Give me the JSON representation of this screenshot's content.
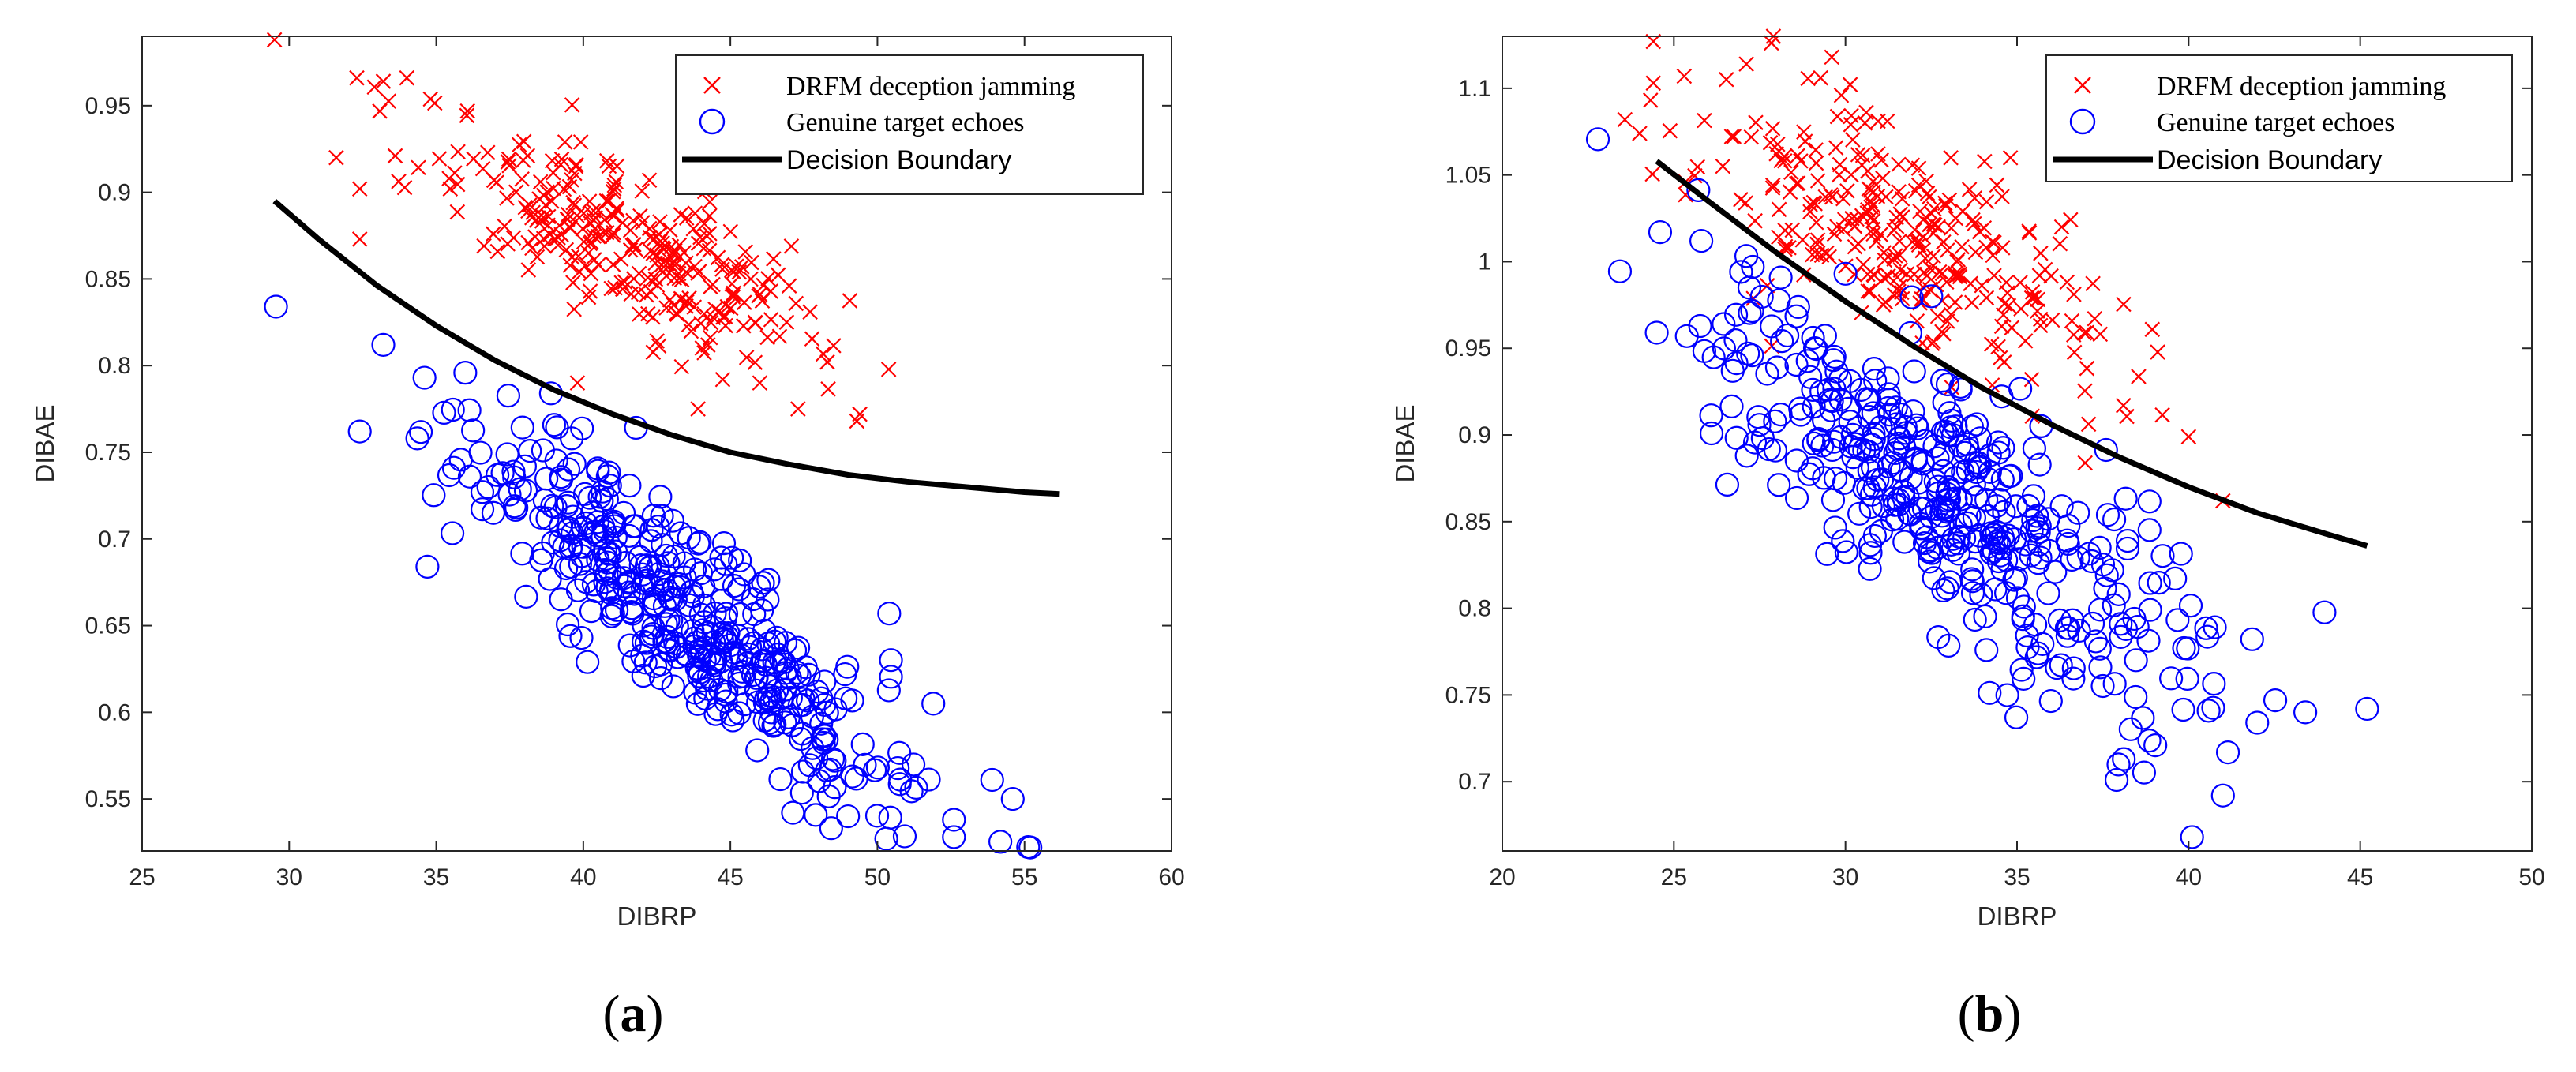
{
  "chart_data": [
    {
      "type": "scatter",
      "panel_label": "(a)",
      "panel_letter": "a",
      "xlabel": "DIBRP",
      "ylabel": "DIBAE",
      "xlim": [
        25,
        60
      ],
      "ylim": [
        0.52,
        0.99
      ],
      "xticks": [
        "25",
        "30",
        "35",
        "40",
        "45",
        "50",
        "55",
        "60"
      ],
      "yticks": [
        "0.55",
        "0.6",
        "0.65",
        "0.7",
        "0.75",
        "0.8",
        "0.85",
        "0.9",
        "0.95"
      ],
      "legend": {
        "position": "top-right",
        "entries": [
          "DRFM deception jamming",
          "Genuine target echoes",
          "Decision Boundary"
        ]
      },
      "series": [
        {
          "name": "DRFM deception jamming",
          "marker": "x",
          "color": "#ff0000",
          "cluster": {
            "count": 300,
            "x_mean": 41.5,
            "x_sd": 3.4,
            "y_center": 0.87,
            "y_slope": -0.0075,
            "y_sd": 0.022
          },
          "points": [
            [
              29.5,
              0.988
            ],
            [
              32.3,
              0.966
            ],
            [
              33.2,
              0.964
            ],
            [
              34.0,
              0.966
            ],
            [
              31.6,
              0.92
            ],
            [
              32.4,
              0.902
            ],
            [
              32.4,
              0.873
            ],
            [
              39.8,
              0.79
            ],
            [
              43.9,
              0.775
            ],
            [
              47.3,
              0.775
            ],
            [
              49.3,
              0.768
            ],
            [
              49.4,
              0.772
            ],
            [
              47.0,
              0.846
            ],
            [
              45.3,
              0.854
            ],
            [
              46.0,
              0.79
            ]
          ]
        },
        {
          "name": "Genuine target echoes",
          "marker": "o",
          "color": "#0000ff",
          "cluster": {
            "count": 420,
            "x_mean": 43.5,
            "x_sd": 3.8,
            "y_center": 0.655,
            "y_slope": -0.0125,
            "y_sd": 0.026
          },
          "points": [
            [
              33.2,
              0.812
            ],
            [
              32.4,
              0.762
            ],
            [
              34.6,
              0.793
            ],
            [
              34.7,
              0.684
            ],
            [
              38.9,
              0.784
            ],
            [
              53.9,
              0.561
            ],
            [
              54.6,
              0.55
            ],
            [
              55.2,
              0.522
            ],
            [
              50.4,
              0.657
            ],
            [
              52.6,
              0.538
            ],
            [
              52.6,
              0.528
            ],
            [
              50.3,
              0.527
            ],
            [
              51.9,
              0.605
            ],
            [
              49.0,
              0.54
            ]
          ]
        }
      ],
      "decision_boundary": {
        "name": "Decision Boundary",
        "color": "#000000",
        "x": [
          29.5,
          31,
          33,
          35,
          37,
          39,
          41,
          43,
          45,
          47,
          49,
          51,
          53,
          55,
          56.2
        ],
        "y": [
          0.895,
          0.873,
          0.846,
          0.823,
          0.803,
          0.786,
          0.772,
          0.76,
          0.75,
          0.743,
          0.737,
          0.733,
          0.73,
          0.727,
          0.726
        ]
      }
    },
    {
      "type": "scatter",
      "panel_label": "(b)",
      "panel_letter": "b",
      "xlabel": "DIBRP",
      "ylabel": "DIBAE",
      "xlim": [
        20,
        50
      ],
      "ylim": [
        0.66,
        1.13
      ],
      "xticks": [
        "20",
        "25",
        "30",
        "35",
        "40",
        "45",
        "50"
      ],
      "yticks": [
        "0.7",
        "0.75",
        "0.8",
        "0.85",
        "0.9",
        "0.95",
        "1",
        "1.05",
        "1.1"
      ],
      "legend": {
        "position": "top-right",
        "entries": [
          "DRFM deception jamming",
          "Genuine target echoes",
          "Decision Boundary"
        ]
      },
      "series": [
        {
          "name": "DRFM deception jamming",
          "marker": "x",
          "color": "#ff0000",
          "cluster": {
            "count": 300,
            "x_mean": 31.5,
            "x_sd": 2.9,
            "y_center": 1.015,
            "y_slope": -0.0105,
            "y_sd": 0.032
          },
          "points": [
            [
              24.4,
              1.127
            ],
            [
              24.4,
              1.103
            ],
            [
              25.3,
              1.107
            ],
            [
              27.9,
              1.13
            ],
            [
              29.6,
              1.118
            ],
            [
              40.0,
              0.899
            ],
            [
              41.0,
              0.862
            ],
            [
              38.1,
              0.917
            ],
            [
              36.3,
              1.02
            ]
          ]
        },
        {
          "name": "Genuine target echoes",
          "marker": "o",
          "color": "#0000ff",
          "cluster": {
            "count": 420,
            "x_mean": 33.0,
            "x_sd": 3.3,
            "y_center": 0.86,
            "y_slope": -0.0125,
            "y_sd": 0.038
          },
          "points": [
            [
              24.6,
              1.017
            ],
            [
              24.5,
              0.959
            ],
            [
              25.8,
              1.012
            ],
            [
              27.3,
              0.997
            ],
            [
              27.2,
              0.985
            ],
            [
              30.0,
              0.993
            ],
            [
              32.5,
              0.98
            ],
            [
              43.4,
              0.74
            ],
            [
              45.2,
              0.742
            ],
            [
              40.1,
              0.668
            ],
            [
              41.0,
              0.692
            ],
            [
              37.9,
              0.701
            ],
            [
              42.0,
              0.734
            ]
          ]
        }
      ],
      "decision_boundary": {
        "name": "Decision Boundary",
        "color": "#000000",
        "x": [
          24.5,
          26,
          28,
          30,
          32,
          34,
          36,
          38,
          40,
          42,
          44,
          45.2
        ],
        "y": [
          1.058,
          1.035,
          1.005,
          0.977,
          0.951,
          0.927,
          0.906,
          0.887,
          0.87,
          0.855,
          0.843,
          0.836
        ]
      }
    }
  ]
}
